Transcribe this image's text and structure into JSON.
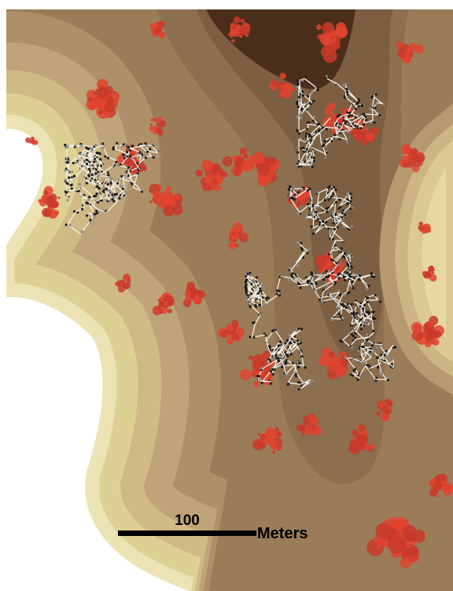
{
  "map": {
    "scale_bar": {
      "value_label": "100",
      "unit_label": "Meters"
    }
  }
}
